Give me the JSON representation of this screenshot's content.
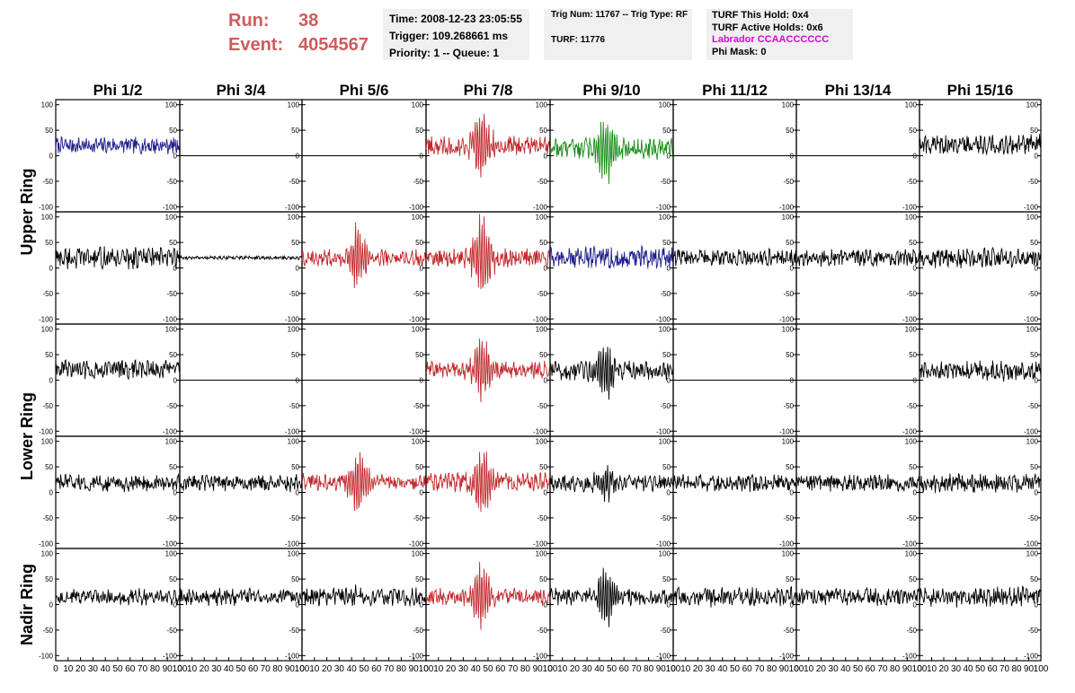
{
  "header": {
    "run_label": "Run:",
    "run_value": "38",
    "event_label": "Event:",
    "event_value": "4054567",
    "time": "Time: 2008-12-23 23:05:55",
    "trigger": "Trigger: 109.268661 ms",
    "priority": "Priority: 1 -- Queue: 1",
    "trig_num": "Trig Num: 11767 -- Trig Type: RF",
    "turf": "TURF: 11776",
    "turf_this_hold": "TURF This Hold: 0x4",
    "turf_active_holds": "TURF Active Holds: 0x6",
    "labrador": "Labrador CCAACCCCCC",
    "phi_mask": "Phi Mask: 0"
  },
  "chart_data": {
    "type": "line",
    "columns": [
      "Phi 1/2",
      "Phi 3/4",
      "Phi 5/6",
      "Phi 7/8",
      "Phi 9/10",
      "Phi 11/12",
      "Phi 13/14",
      "Phi 15/16"
    ],
    "ring_labels": [
      {
        "label": "Upper Ring",
        "rows": [
          0,
          1
        ]
      },
      {
        "label": "Lower Ring",
        "rows": [
          2,
          3
        ]
      },
      {
        "label": "Nadir Ring",
        "rows": [
          4
        ]
      }
    ],
    "xlim": [
      0,
      100
    ],
    "ylim": [
      -110,
      110
    ],
    "yticks": [
      -100,
      -50,
      0,
      50,
      100
    ],
    "xticks": [
      0,
      10,
      20,
      30,
      40,
      50,
      60,
      70,
      80,
      90,
      100
    ],
    "colors": {
      "black": "#000000",
      "red": "#c0282c",
      "blue": "#1e1e8c",
      "green": "#1a8c1a"
    },
    "cells": [
      [
        {
          "color": "blue",
          "mean": 20,
          "amp": 14,
          "burst": 0
        },
        {
          "color": "black",
          "mean": 0,
          "amp": 0,
          "burst": 0
        },
        {
          "color": "black",
          "mean": 0,
          "amp": 0,
          "burst": 0
        },
        {
          "color": "red",
          "mean": 20,
          "amp": 16,
          "burst": 60
        },
        {
          "color": "green",
          "mean": 15,
          "amp": 18,
          "burst": 60
        },
        {
          "color": "black",
          "mean": 0,
          "amp": 0,
          "burst": 0
        },
        {
          "color": "black",
          "mean": 0,
          "amp": 0,
          "burst": 0
        },
        {
          "color": "black",
          "mean": 22,
          "amp": 16,
          "burst": 0
        }
      ],
      [
        {
          "color": "black",
          "mean": 20,
          "amp": 18,
          "burst": 0
        },
        {
          "color": "black",
          "mean": 20,
          "amp": 3,
          "burst": 0
        },
        {
          "color": "red",
          "mean": 20,
          "amp": 14,
          "burst": 55
        },
        {
          "color": "red",
          "mean": 20,
          "amp": 16,
          "burst": 75
        },
        {
          "color": "blue",
          "mean": 20,
          "amp": 18,
          "burst": 0
        },
        {
          "color": "black",
          "mean": 20,
          "amp": 14,
          "burst": 0
        },
        {
          "color": "black",
          "mean": 20,
          "amp": 14,
          "burst": 0
        },
        {
          "color": "black",
          "mean": 20,
          "amp": 16,
          "burst": 0
        }
      ],
      [
        {
          "color": "black",
          "mean": 22,
          "amp": 16,
          "burst": 0
        },
        {
          "color": "black",
          "mean": 0,
          "amp": 0,
          "burst": 0
        },
        {
          "color": "black",
          "mean": 0,
          "amp": 0,
          "burst": 0
        },
        {
          "color": "red",
          "mean": 20,
          "amp": 14,
          "burst": 60
        },
        {
          "color": "black",
          "mean": 18,
          "amp": 16,
          "burst": 45
        },
        {
          "color": "black",
          "mean": 0,
          "amp": 0,
          "burst": 0
        },
        {
          "color": "black",
          "mean": 0,
          "amp": 0,
          "burst": 0
        },
        {
          "color": "black",
          "mean": 18,
          "amp": 16,
          "burst": 0
        }
      ],
      [
        {
          "color": "black",
          "mean": 18,
          "amp": 14,
          "burst": 0
        },
        {
          "color": "black",
          "mean": 18,
          "amp": 14,
          "burst": 0
        },
        {
          "color": "red",
          "mean": 20,
          "amp": 14,
          "burst": 55
        },
        {
          "color": "red",
          "mean": 20,
          "amp": 16,
          "burst": 70
        },
        {
          "color": "black",
          "mean": 18,
          "amp": 14,
          "burst": 25
        },
        {
          "color": "black",
          "mean": 18,
          "amp": 14,
          "burst": 0
        },
        {
          "color": "black",
          "mean": 18,
          "amp": 14,
          "burst": 0
        },
        {
          "color": "black",
          "mean": 18,
          "amp": 16,
          "burst": 0
        }
      ],
      [
        {
          "color": "black",
          "mean": 15,
          "amp": 14,
          "burst": 0
        },
        {
          "color": "black",
          "mean": 15,
          "amp": 14,
          "burst": 0
        },
        {
          "color": "black",
          "mean": 15,
          "amp": 15,
          "burst": 10
        },
        {
          "color": "red",
          "mean": 15,
          "amp": 14,
          "burst": 60
        },
        {
          "color": "black",
          "mean": 15,
          "amp": 14,
          "burst": 50
        },
        {
          "color": "black",
          "mean": 15,
          "amp": 16,
          "burst": 0
        },
        {
          "color": "black",
          "mean": 15,
          "amp": 14,
          "burst": 0
        },
        {
          "color": "black",
          "mean": 15,
          "amp": 16,
          "burst": 0
        }
      ]
    ]
  }
}
